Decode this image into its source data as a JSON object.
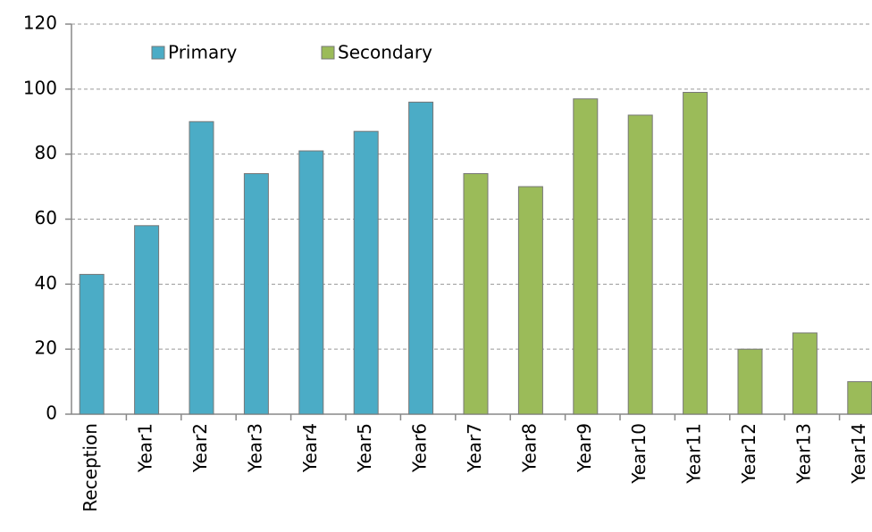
{
  "chart_data": {
    "type": "bar",
    "categories": [
      "Reception",
      "Year1",
      "Year2",
      "Year3",
      "Year4",
      "Year5",
      "Year6",
      "Year7",
      "Year8",
      "Year9",
      "Year10",
      "Year11",
      "Year12",
      "Year13",
      "Year14"
    ],
    "series": [
      {
        "name": "Primary",
        "color": "#4bacc6",
        "values": [
          43,
          58,
          90,
          74,
          81,
          87,
          96,
          null,
          null,
          null,
          null,
          null,
          null,
          null,
          null
        ]
      },
      {
        "name": "Secondary",
        "color": "#9bbb59",
        "values": [
          null,
          null,
          null,
          null,
          null,
          null,
          null,
          74,
          70,
          97,
          92,
          99,
          20,
          25,
          10
        ]
      }
    ],
    "ylim": [
      0,
      120
    ],
    "yticks": [
      0,
      20,
      40,
      60,
      80,
      100,
      120
    ],
    "grid": true,
    "legend": "top"
  }
}
